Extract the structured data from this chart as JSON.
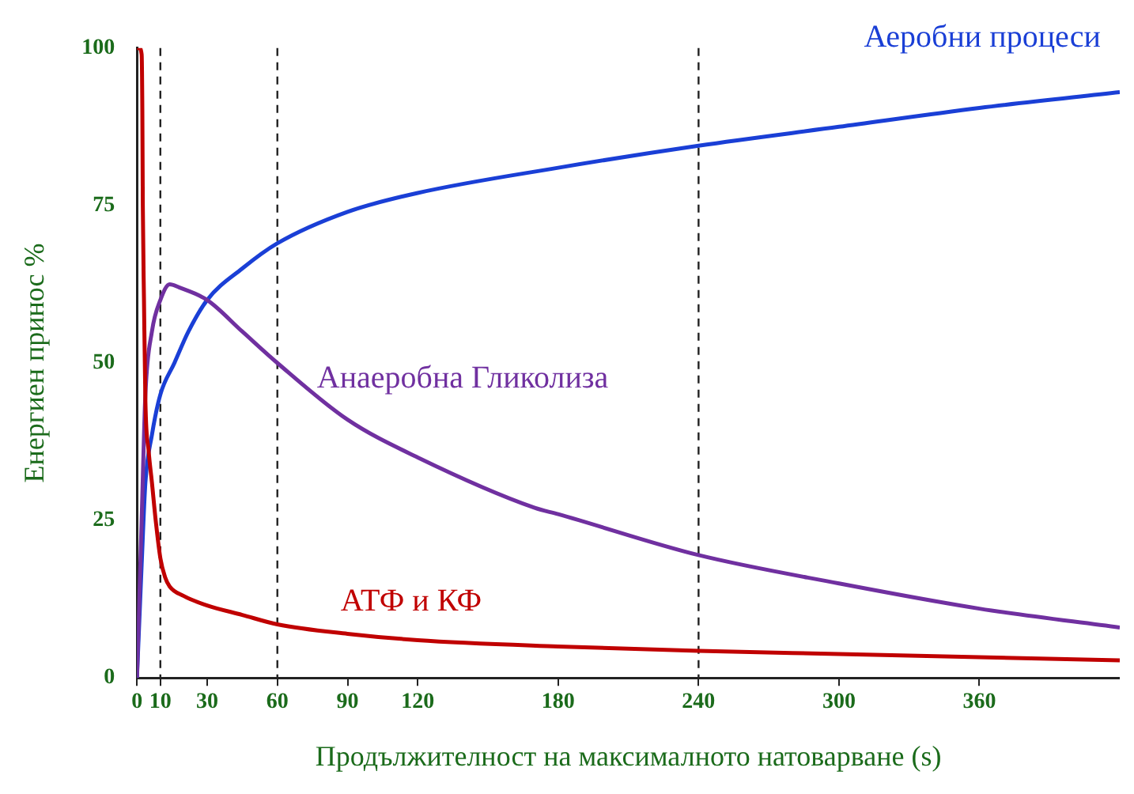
{
  "chart_data": {
    "type": "line",
    "xlabel": "Продължителност на максималното натоварване (s)",
    "ylabel": "Енергиен принос %",
    "xlim": [
      0,
      420
    ],
    "xticks": [
      0,
      10,
      30,
      60,
      90,
      120,
      180,
      240,
      300,
      360
    ],
    "ylim": [
      0,
      100
    ],
    "yticks": [
      0,
      25,
      50,
      75,
      100
    ],
    "grid": false,
    "legend": false,
    "marker": "none",
    "line_style": "solid",
    "ref_lines": [
      {
        "axis": "x",
        "value": 10,
        "line_style": "dashed",
        "color": "#222222"
      },
      {
        "axis": "x",
        "value": 60,
        "line_style": "dashed",
        "color": "#222222"
      },
      {
        "axis": "x",
        "value": 240,
        "line_style": "dashed",
        "color": "#222222"
      }
    ],
    "series": [
      {
        "name": "АТФ и КФ",
        "color": "#c00000",
        "x": [
          0,
          1,
          2,
          2.3,
          2.5,
          3,
          3.6,
          5,
          6.4,
          8,
          10,
          12,
          14,
          20,
          30,
          45,
          60,
          90,
          120,
          180,
          240,
          300,
          360,
          420
        ],
        "values": [
          100,
          100,
          99,
          90,
          75,
          60,
          44,
          36,
          31,
          25,
          19,
          16,
          14.5,
          13,
          11.5,
          10,
          8.5,
          7,
          6,
          5,
          4.3,
          3.8,
          3.3,
          2.8
        ]
      },
      {
        "name": "Анаеробна Гликолиза",
        "color": "#7030a0",
        "x": [
          0,
          2,
          3.6,
          6.4,
          10,
          14,
          18,
          30,
          45,
          60,
          90,
          120,
          170,
          180,
          240,
          300,
          360,
          420
        ],
        "values": [
          0,
          25,
          45,
          55,
          60,
          62.5,
          62,
          60,
          55,
          50,
          41,
          35,
          27,
          26,
          19.5,
          15,
          11,
          8
        ]
      },
      {
        "name": "Аеробни процеси",
        "color": "#1a3fd6",
        "x": [
          0,
          2,
          3.6,
          6.4,
          10,
          16,
          22,
          30,
          45,
          60,
          90,
          120,
          180,
          240,
          300,
          360,
          420
        ],
        "values": [
          0,
          18,
          31,
          38.6,
          45,
          50,
          55,
          60,
          65,
          69,
          74,
          77,
          81,
          84.5,
          87.5,
          90.5,
          93
        ]
      }
    ]
  }
}
